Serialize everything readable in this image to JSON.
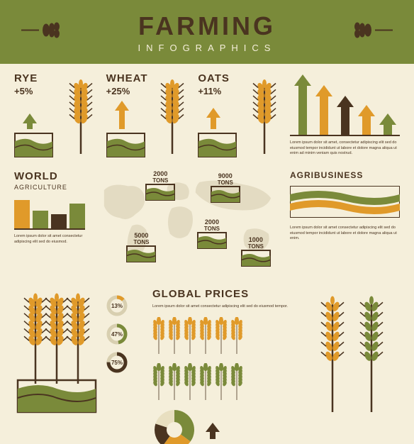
{
  "header": {
    "title": "FARMING",
    "subtitle": "INFOGRAPHICS"
  },
  "palette": {
    "bg": "#f5efdb",
    "green": "#7a8a3a",
    "dark": "#4a3420",
    "orange": "#e09a2a",
    "brown": "#6b4a2f",
    "olive": "#5a6b2a",
    "cream": "#e8dfc0"
  },
  "crops": [
    {
      "name": "RYE",
      "pct": "+5%",
      "arrow_h": 22,
      "arrow_color": "#7a8a3a"
    },
    {
      "name": "WHEAT",
      "pct": "+25%",
      "arrow_h": 40,
      "arrow_color": "#e09a2a"
    },
    {
      "name": "OATS",
      "pct": "+11%",
      "arrow_h": 30,
      "arrow_color": "#e09a2a"
    }
  ],
  "bars": {
    "heights": [
      85,
      70,
      55,
      42,
      30
    ],
    "colors": [
      "#7a8a3a",
      "#e09a2a",
      "#4a3420",
      "#e09a2a",
      "#7a8a3a"
    ],
    "lorem": "Lorem ipsum dolor sit amet, consectetur adipiscing elit sed do eiusmod tempor incididunt ut labore et dolore magna aliqua ut enim ad minim veniam quis nostrud."
  },
  "world": {
    "title": "WORLD",
    "subtitle": "AGRICULTURE",
    "mini_bars": {
      "heights": [
        40,
        25,
        20,
        35
      ],
      "colors": [
        "#e09a2a",
        "#7a8a3a",
        "#4a3420",
        "#7a8a3a"
      ]
    },
    "lorem": "Lorem ipsum dolor sit amet consectetur adipiscing elit sed do eiusmod.",
    "markers": [
      {
        "val": "2000",
        "unit": "TONS",
        "x": 28,
        "y": 0
      },
      {
        "val": "9000",
        "unit": "TONS",
        "x": 62,
        "y": 2
      },
      {
        "val": "2000",
        "unit": "TONS",
        "x": 55,
        "y": 45
      },
      {
        "val": "5000",
        "unit": "TONS",
        "x": 18,
        "y": 58
      },
      {
        "val": "1000",
        "unit": "TONS",
        "x": 78,
        "y": 62
      }
    ]
  },
  "agri": {
    "title": "AGRIBUSINESS",
    "lorem": "Lorem ipsum dolor sit amet consectetur adipiscing elit sed do eiusmod tempor incididunt ut labore et dolore magna aliqua ut enim."
  },
  "prices": {
    "title": "GLOBAL PRICES",
    "lorem": "Lorem ipsum dolor sit amet consectetur adipiscing elit sed do eiusmod tempor.",
    "donuts": [
      {
        "pct": 13,
        "color": "#e09a2a"
      },
      {
        "pct": 47,
        "color": "#7a8a3a"
      },
      {
        "pct": 75,
        "color": "#4a3420"
      }
    ],
    "wheat_icons": {
      "count1": 6,
      "count2": 6,
      "color1": "#e09a2a",
      "color2": "#7a8a3a"
    },
    "pie": {
      "slices": [
        {
          "pct": 35,
          "color": "#7a8a3a"
        },
        {
          "pct": 25,
          "color": "#e09a2a"
        },
        {
          "pct": 20,
          "color": "#4a3420"
        },
        {
          "pct": 20,
          "color": "#e8dfc0"
        }
      ]
    }
  }
}
